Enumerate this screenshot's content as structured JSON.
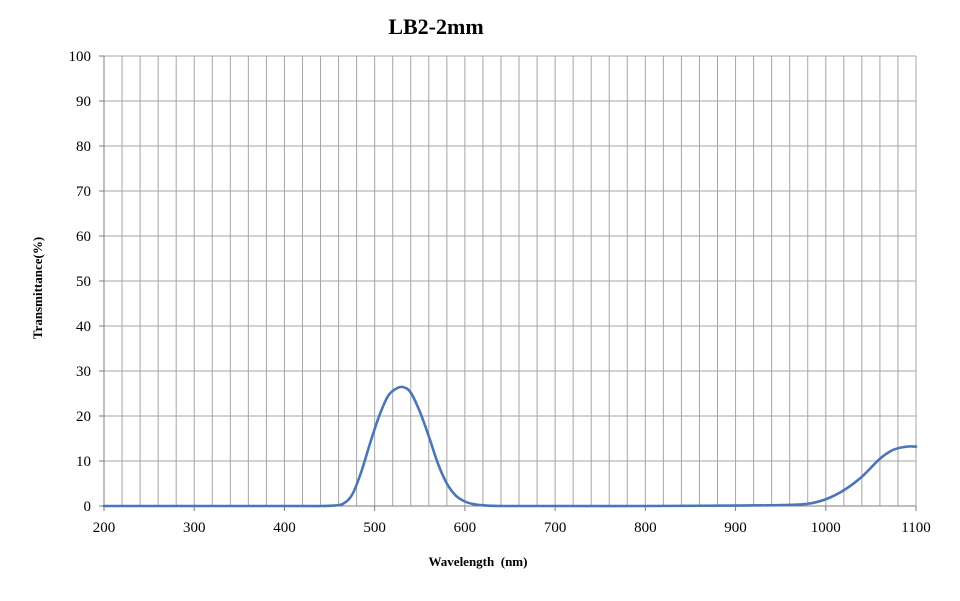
{
  "chart_data": {
    "type": "line",
    "title": "LB2-2mm",
    "xlabel": "Wavelength  (nm)",
    "ylabel": "Transmittance(%)",
    "xlim": [
      200,
      1100
    ],
    "ylim": [
      0,
      100
    ],
    "x_major_ticks": [
      200,
      300,
      400,
      500,
      600,
      700,
      800,
      900,
      1000,
      1100
    ],
    "y_major_ticks": [
      0,
      10,
      20,
      30,
      40,
      50,
      60,
      70,
      80,
      90,
      100
    ],
    "x_grid_step": 20,
    "grid": true,
    "legend": "none",
    "series": [
      {
        "color": "#4a76b8",
        "x": [
          200,
          300,
          400,
          440,
          455,
          465,
          475,
          485,
          495,
          505,
          515,
          525,
          532,
          540,
          550,
          560,
          570,
          580,
          590,
          600,
          610,
          620,
          640,
          700,
          800,
          900,
          950,
          980,
          1000,
          1020,
          1040,
          1060,
          1075,
          1090,
          1100
        ],
        "y": [
          0,
          0,
          0,
          0,
          0.1,
          0.5,
          2.5,
          7.5,
          14,
          20,
          24.5,
          26.2,
          26.4,
          25.2,
          21,
          15.5,
          9.5,
          5,
          2.3,
          1,
          0.4,
          0.15,
          0,
          0,
          0,
          0.1,
          0.2,
          0.5,
          1.5,
          3.5,
          6.5,
          10.5,
          12.5,
          13.2,
          13.2
        ]
      }
    ]
  }
}
